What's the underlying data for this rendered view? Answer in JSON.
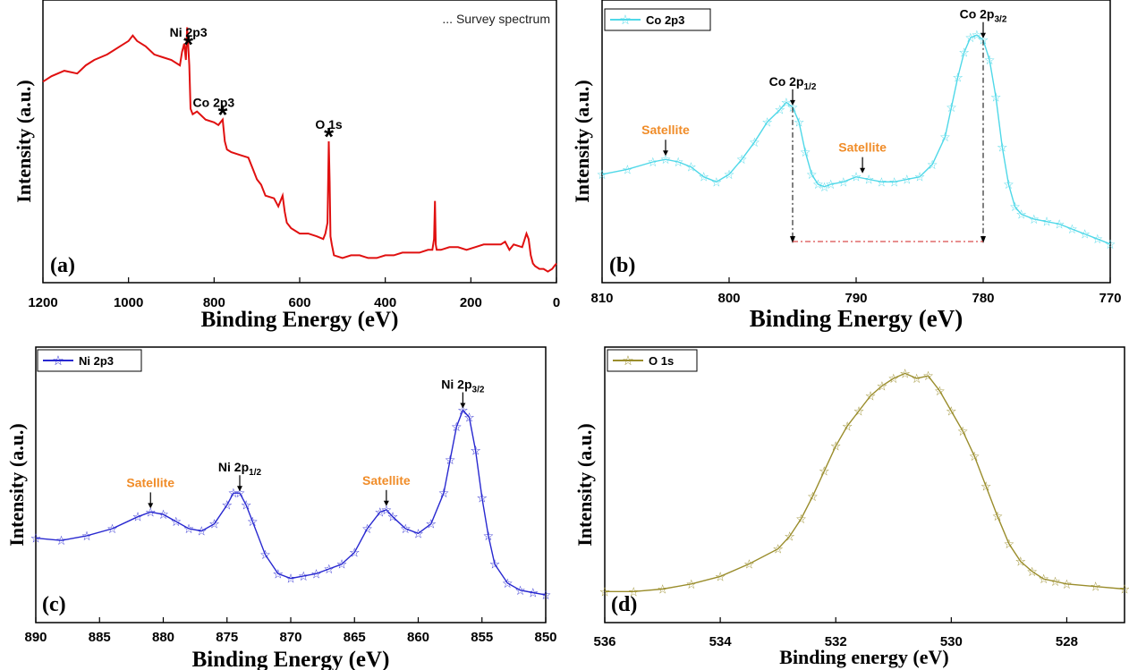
{
  "chart_data": [
    {
      "type": "line",
      "panel_label": "(a)",
      "xlabel": "Binding Energy (eV)",
      "ylabel": "Intensity (a.u.)",
      "xlim": [
        1200,
        0
      ],
      "ylim": [
        0,
        1
      ],
      "x_reversed": true,
      "x_ticks": [
        1200,
        1000,
        800,
        600,
        400,
        200,
        0
      ],
      "legend": {
        "text": "... Survey spectrum",
        "position": "top-right"
      },
      "color": "#e01010",
      "series": [
        {
          "x": [
            1200,
            1180,
            1150,
            1120,
            1100,
            1080,
            1050,
            1020,
            1000,
            990,
            980,
            960,
            940,
            920,
            900,
            880,
            875,
            870,
            866,
            863,
            860,
            858,
            855,
            850,
            840,
            820,
            800,
            790,
            780,
            775,
            770,
            760,
            740,
            720,
            710,
            700,
            690,
            680,
            660,
            650,
            640,
            635,
            630,
            620,
            600,
            580,
            560,
            545,
            540,
            535,
            532,
            530,
            528,
            525,
            520,
            500,
            480,
            460,
            440,
            420,
            400,
            380,
            360,
            340,
            320,
            300,
            290,
            286,
            284,
            282,
            280,
            270,
            250,
            230,
            210,
            190,
            170,
            150,
            130,
            120,
            110,
            100,
            80,
            70,
            65,
            60,
            55,
            50,
            40,
            30,
            20,
            10,
            5,
            0
          ],
          "y": [
            0.72,
            0.74,
            0.76,
            0.75,
            0.78,
            0.8,
            0.82,
            0.85,
            0.87,
            0.89,
            0.87,
            0.85,
            0.82,
            0.81,
            0.8,
            0.78,
            0.83,
            0.86,
            0.8,
            0.92,
            0.84,
            0.78,
            0.62,
            0.6,
            0.61,
            0.58,
            0.57,
            0.56,
            0.58,
            0.5,
            0.47,
            0.46,
            0.45,
            0.44,
            0.4,
            0.36,
            0.34,
            0.3,
            0.29,
            0.26,
            0.3,
            0.24,
            0.2,
            0.18,
            0.16,
            0.16,
            0.15,
            0.14,
            0.16,
            0.2,
            0.5,
            0.35,
            0.15,
            0.12,
            0.08,
            0.07,
            0.08,
            0.08,
            0.07,
            0.07,
            0.08,
            0.08,
            0.09,
            0.09,
            0.09,
            0.1,
            0.1,
            0.14,
            0.28,
            0.12,
            0.1,
            0.1,
            0.11,
            0.11,
            0.1,
            0.11,
            0.12,
            0.12,
            0.12,
            0.13,
            0.1,
            0.12,
            0.11,
            0.16,
            0.14,
            0.08,
            0.05,
            0.04,
            0.03,
            0.03,
            0.02,
            0.03,
            0.04,
            0.05
          ]
        }
      ],
      "annotations": [
        {
          "text": "Ni 2p3",
          "x": 860,
          "marker": "*"
        },
        {
          "text": "Co 2p3",
          "x": 780,
          "marker": "*"
        },
        {
          "text": "O 1s",
          "x": 532,
          "marker": "*"
        }
      ]
    },
    {
      "type": "line",
      "panel_label": "(b)",
      "xlabel": "Binding Energy (eV)",
      "ylabel": "Intensity (a.u.)",
      "xlim": [
        810,
        770
      ],
      "ylim": [
        0,
        1
      ],
      "x_reversed": true,
      "x_ticks": [
        810,
        800,
        790,
        780,
        770
      ],
      "legend": {
        "text": "Co 2p3",
        "position": "top-left"
      },
      "color": "#4fd8e8",
      "series": [
        {
          "name": "Co 2p3",
          "x": [
            810,
            808,
            806,
            805,
            804,
            803,
            802,
            801,
            800,
            799,
            798,
            797,
            796,
            795.5,
            795,
            794.5,
            794,
            793.5,
            793,
            792.5,
            792,
            791,
            790,
            789,
            788,
            787,
            786,
            785,
            784,
            783,
            782.5,
            782,
            781.5,
            781,
            780.5,
            780,
            779.5,
            779,
            778.5,
            778,
            777.5,
            777,
            776,
            775,
            774,
            773,
            772,
            771,
            770
          ],
          "y": [
            0.39,
            0.41,
            0.44,
            0.45,
            0.44,
            0.42,
            0.38,
            0.36,
            0.39,
            0.45,
            0.52,
            0.6,
            0.65,
            0.68,
            0.66,
            0.6,
            0.48,
            0.39,
            0.35,
            0.34,
            0.35,
            0.36,
            0.38,
            0.37,
            0.36,
            0.36,
            0.37,
            0.38,
            0.43,
            0.54,
            0.66,
            0.78,
            0.88,
            0.94,
            0.95,
            0.93,
            0.85,
            0.7,
            0.5,
            0.35,
            0.26,
            0.23,
            0.21,
            0.2,
            0.19,
            0.17,
            0.15,
            0.13,
            0.11
          ]
        }
      ],
      "annotations": [
        {
          "text": "Co 2p",
          "sub": "1/2",
          "x": 795
        },
        {
          "text": "Co 2p",
          "sub": "3/2",
          "x": 780
        },
        {
          "text": "Satellite",
          "x": 805
        },
        {
          "text": "Satellite",
          "x": 789.5
        }
      ]
    },
    {
      "type": "line",
      "panel_label": "(c)",
      "xlabel": "Binding Energy (eV)",
      "ylabel": "Intensity (a.u.)",
      "xlim": [
        890,
        850
      ],
      "ylim": [
        0,
        1
      ],
      "x_reversed": true,
      "x_ticks": [
        890,
        885,
        880,
        875,
        870,
        865,
        860,
        855,
        850
      ],
      "legend": {
        "text": "Ni 2p3",
        "position": "top-left"
      },
      "color": "#2828d0",
      "series": [
        {
          "name": "Ni 2p3",
          "x": [
            890,
            888,
            886,
            884,
            882,
            881,
            880,
            879,
            878,
            877,
            876,
            875,
            874.5,
            874,
            873.5,
            873,
            872,
            871,
            870,
            869,
            868,
            867,
            866,
            865,
            864,
            863,
            862.5,
            862,
            861,
            860,
            859,
            858,
            857.5,
            857,
            856.5,
            856,
            855.5,
            855,
            854.5,
            854,
            853,
            852,
            851,
            850
          ],
          "y": [
            0.31,
            0.3,
            0.32,
            0.35,
            0.4,
            0.42,
            0.41,
            0.38,
            0.35,
            0.34,
            0.37,
            0.45,
            0.5,
            0.5,
            0.45,
            0.38,
            0.24,
            0.16,
            0.14,
            0.15,
            0.16,
            0.18,
            0.2,
            0.25,
            0.35,
            0.42,
            0.43,
            0.4,
            0.35,
            0.33,
            0.37,
            0.5,
            0.64,
            0.78,
            0.85,
            0.82,
            0.68,
            0.48,
            0.32,
            0.2,
            0.12,
            0.09,
            0.08,
            0.07
          ]
        }
      ],
      "annotations": [
        {
          "text": "Ni 2p",
          "sub": "1/2",
          "x": 874
        },
        {
          "text": "Ni 2p",
          "sub": "3/2",
          "x": 856.5
        },
        {
          "text": "Satellite",
          "x": 881
        },
        {
          "text": "Satellite",
          "x": 862.5
        }
      ]
    },
    {
      "type": "line",
      "panel_label": "(d)",
      "xlabel": "Binding energy (eV)",
      "ylabel": "Intensity (a.u.)",
      "xlim": [
        536,
        527
      ],
      "ylim": [
        0,
        1
      ],
      "x_reversed": true,
      "x_ticks": [
        536,
        534,
        532,
        530,
        528
      ],
      "legend": {
        "text": "O 1s",
        "position": "top-left"
      },
      "color": "#9a8d2c",
      "series": [
        {
          "name": "O 1s",
          "x": [
            536,
            535.5,
            535,
            534.5,
            534,
            533.5,
            533,
            532.8,
            532.6,
            532.4,
            532.2,
            532,
            531.8,
            531.6,
            531.4,
            531.2,
            531,
            530.8,
            530.6,
            530.4,
            530.2,
            530,
            529.8,
            529.6,
            529.4,
            529.2,
            529,
            528.8,
            528.6,
            528.4,
            528.2,
            528,
            527.5,
            527
          ],
          "y": [
            0.08,
            0.08,
            0.09,
            0.11,
            0.14,
            0.19,
            0.25,
            0.3,
            0.37,
            0.46,
            0.56,
            0.66,
            0.74,
            0.8,
            0.86,
            0.9,
            0.93,
            0.95,
            0.93,
            0.94,
            0.88,
            0.8,
            0.72,
            0.62,
            0.5,
            0.38,
            0.27,
            0.2,
            0.16,
            0.13,
            0.12,
            0.11,
            0.1,
            0.09
          ]
        }
      ]
    }
  ]
}
